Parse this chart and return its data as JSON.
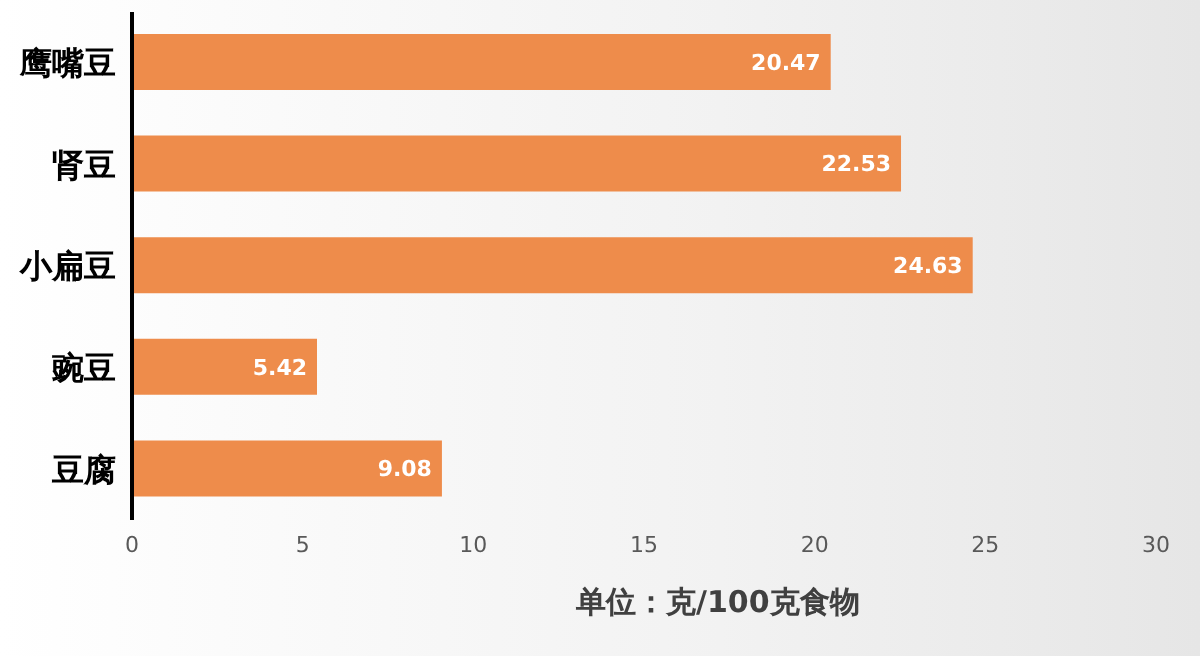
{
  "chart_data": {
    "type": "bar",
    "orientation": "horizontal",
    "categories": [
      "鹰嘴豆",
      "肾豆",
      "小扁豆",
      "豌豆",
      "豆腐"
    ],
    "values": [
      20.47,
      22.53,
      24.63,
      5.42,
      9.08
    ],
    "color": "#ee8c4b",
    "xlim": [
      0,
      30
    ],
    "xticks": [
      0,
      5,
      10,
      15,
      20,
      25,
      30
    ],
    "xlabel": "单位：克/100克食物",
    "data_labels": true,
    "grid": false,
    "legend": false
  }
}
